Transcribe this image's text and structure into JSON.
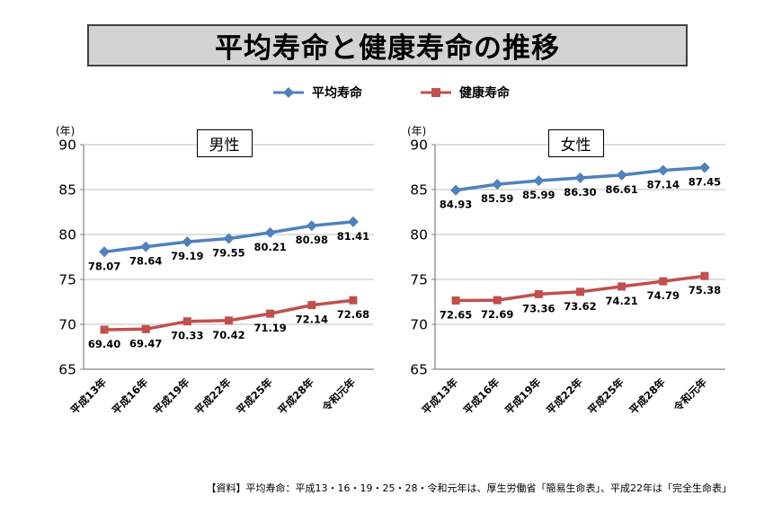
{
  "page": {
    "title": "平均寿命と健康寿命の推移",
    "source_note": "【資料】平均寿命：平成13・16・19・25・28・令和元年は、厚生労働省「簡易生命表」、平成22年は「完全生命表」"
  },
  "legend": [
    {
      "label": "平均寿命",
      "color": "#4F81BD",
      "marker": "diamond"
    },
    {
      "label": "健康寿命",
      "color": "#C0504D",
      "marker": "square"
    }
  ],
  "chart_data": [
    {
      "type": "line",
      "title": "男性",
      "unit_label": "(年)",
      "categories": [
        "平成13年",
        "平成16年",
        "平成19年",
        "平成22年",
        "平成25年",
        "平成28年",
        "令和元年"
      ],
      "series": [
        {
          "name": "平均寿命",
          "color": "#4F81BD",
          "marker": "diamond",
          "values": [
            78.07,
            78.64,
            79.19,
            79.55,
            80.21,
            80.98,
            81.41
          ]
        },
        {
          "name": "健康寿命",
          "color": "#C0504D",
          "marker": "square",
          "values": [
            69.4,
            69.47,
            70.33,
            70.42,
            71.19,
            72.14,
            72.68
          ]
        }
      ],
      "ylim": [
        65,
        90
      ],
      "ytick_step": 5,
      "grid": true,
      "legend_position": "top"
    },
    {
      "type": "line",
      "title": "女性",
      "unit_label": "(年)",
      "categories": [
        "平成13年",
        "平成16年",
        "平成19年",
        "平成22年",
        "平成25年",
        "平成28年",
        "令和元年"
      ],
      "series": [
        {
          "name": "平均寿命",
          "color": "#4F81BD",
          "marker": "diamond",
          "values": [
            84.93,
            85.59,
            85.99,
            86.3,
            86.61,
            87.14,
            87.45
          ]
        },
        {
          "name": "健康寿命",
          "color": "#C0504D",
          "marker": "square",
          "values": [
            72.65,
            72.69,
            73.36,
            73.62,
            74.21,
            74.79,
            75.38
          ]
        }
      ],
      "ylim": [
        65,
        90
      ],
      "ytick_step": 5,
      "grid": true,
      "legend_position": "top"
    }
  ]
}
